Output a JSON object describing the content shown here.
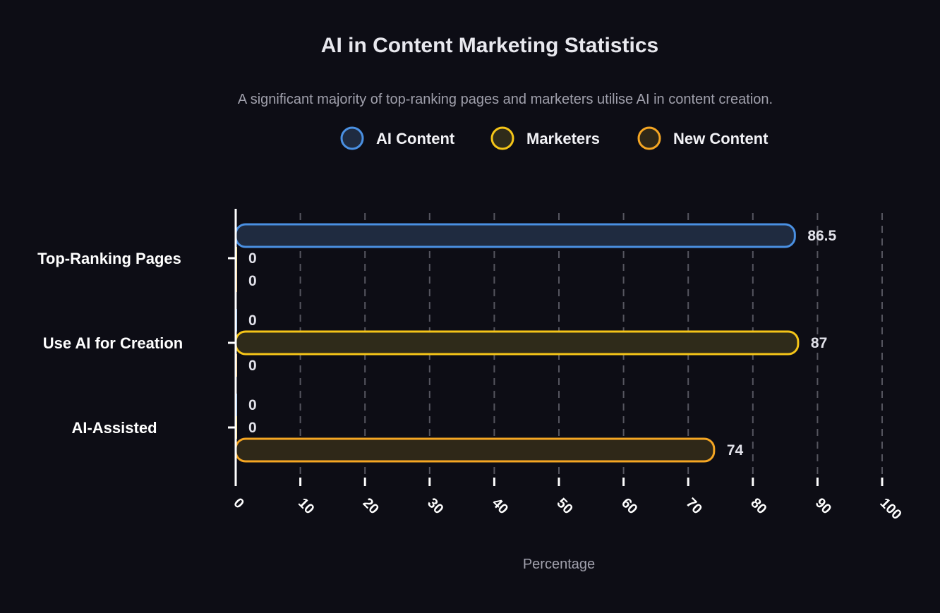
{
  "chart_data": {
    "type": "bar",
    "orientation": "horizontal",
    "title": "AI in Content Marketing Statistics",
    "subtitle": "A significant majority of top-ranking pages and marketers utilise AI in content creation.",
    "xlabel": "Percentage",
    "ylabel": "",
    "xlim": [
      0,
      100
    ],
    "xticks": [
      "0",
      "10",
      "20",
      "30",
      "40",
      "50",
      "60",
      "70",
      "80",
      "90",
      "100"
    ],
    "categories": [
      "Top-Ranking Pages",
      "Use AI for Creation",
      "AI-Assisted"
    ],
    "series": [
      {
        "name": "AI Content",
        "values": [
          86.5,
          0,
          0
        ],
        "labels": [
          "86.5",
          "0",
          "0"
        ],
        "color": "#4a90e2",
        "fill": "#1f2b40"
      },
      {
        "name": "Marketers",
        "values": [
          0,
          87,
          0
        ],
        "labels": [
          "0",
          "87",
          "0"
        ],
        "color": "#f5c518",
        "fill": "#2f2b1a"
      },
      {
        "name": "New Content",
        "values": [
          0,
          0,
          74
        ],
        "labels": [
          "0",
          "0",
          "74"
        ],
        "color": "#f5a623",
        "fill": "#2f2818"
      }
    ],
    "grid": "vertical-dashed",
    "legend_position": "top-center"
  }
}
